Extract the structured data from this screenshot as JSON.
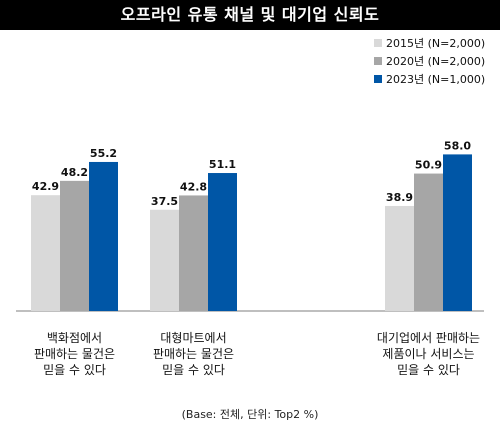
{
  "title": "오프라인 유통 채널 및 대기업 신뢰도",
  "footnote": "(Base: 전체, 단위: Top2 %)",
  "colors": {
    "title_bg": "#000000",
    "baseline": "#7f7f7f",
    "label": "#111111"
  },
  "chart_data": {
    "type": "bar",
    "title": "오프라인 유통 채널 및 대기업 신뢰도",
    "categories": [
      [
        "백화점에서",
        "판매하는 물건은",
        "믿을 수 있다"
      ],
      [
        "대형마트에서",
        "판매하는 물건은",
        "믿을 수 있다"
      ],
      [
        "대기업에서 판매하는",
        "제품이나 서비스는",
        "믿을 수 있다"
      ]
    ],
    "series": [
      {
        "name": "2015년 (N=2,000)",
        "color": "#d9d9d9",
        "values": [
          42.9,
          37.5,
          38.9
        ],
        "labels": [
          "42.9",
          "37.5",
          "38.9"
        ]
      },
      {
        "name": "2020년 (N=2,000)",
        "color": "#a6a6a6",
        "values": [
          48.2,
          42.8,
          50.9
        ],
        "labels": [
          "48.2",
          "42.8",
          "50.9"
        ]
      },
      {
        "name": "2023년 (N=1,000)",
        "color": "#0056a6",
        "values": [
          55.2,
          51.1,
          58.0
        ],
        "labels": [
          "55.2",
          "51.1",
          "58.0"
        ]
      }
    ],
    "legend_position": "top-right",
    "grid": false,
    "ylim": [
      0,
      110
    ]
  }
}
